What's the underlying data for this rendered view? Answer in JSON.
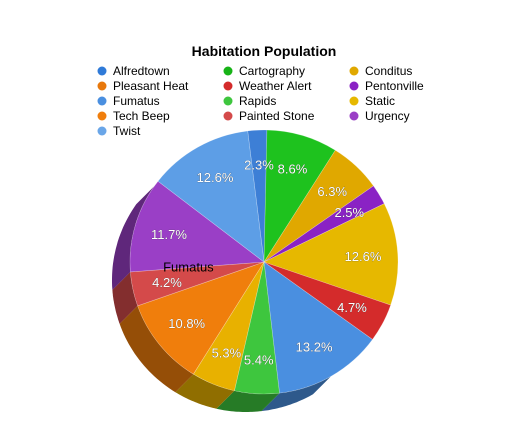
{
  "chart_data": {
    "type": "pie",
    "title": "Habitation Population",
    "categories": [
      "Alfredtown",
      "Cartography",
      "Conditus",
      "Pentonville",
      "Static",
      "Weather Alert",
      "Urgency",
      "Twist",
      "Painted Stone",
      "Tech Beep",
      "Rapids",
      "Fumatus",
      "Pleasant Heat"
    ],
    "values": [
      2.3,
      8.6,
      6.3,
      2.5,
      12.6,
      4.7,
      13.2,
      5.4,
      5.3,
      10.8,
      4.2,
      11.7,
      12.6
    ],
    "labels": [
      "2.3%",
      "8.6%",
      "6.3%",
      "2.5%",
      "12.6%",
      "4.7%",
      "13.2%",
      "5.4%",
      "5.3%",
      "10.8%",
      "4.2%",
      "11.7%",
      "12.6%"
    ],
    "colors": [
      "#3d7fd6",
      "#1ec21e",
      "#e0a800",
      "#8a22c4",
      "#e6b800",
      "#d42b2b",
      "#4a8fe0",
      "#3ec63e",
      "#e8b100",
      "#f07e0c",
      "#d44a4a",
      "#9a3fc6",
      "#5d9ee6"
    ],
    "legend": [
      {
        "name": "Alfredtown",
        "color": "#2f7ad8"
      },
      {
        "name": "Pleasant Heat",
        "color": "#e8780b"
      },
      {
        "name": "Fumatus",
        "color": "#4a8fe0"
      },
      {
        "name": "Tech Beep",
        "color": "#f07e0c"
      },
      {
        "name": "Twist",
        "color": "#6aa6e8"
      },
      {
        "name": "Cartography",
        "color": "#17b317"
      },
      {
        "name": "Weather Alert",
        "color": "#d42b2b"
      },
      {
        "name": "Rapids",
        "color": "#3ec63e"
      },
      {
        "name": "Painted Stone",
        "color": "#d44a4a"
      },
      {
        "name": "Conditus",
        "color": "#e0a800"
      },
      {
        "name": "Pentonville",
        "color": "#8a22c4"
      },
      {
        "name": "Static",
        "color": "#e6b800"
      },
      {
        "name": "Urgency",
        "color": "#9a3fc6"
      }
    ],
    "annotation": "Fumatus",
    "legend_position": "top"
  }
}
